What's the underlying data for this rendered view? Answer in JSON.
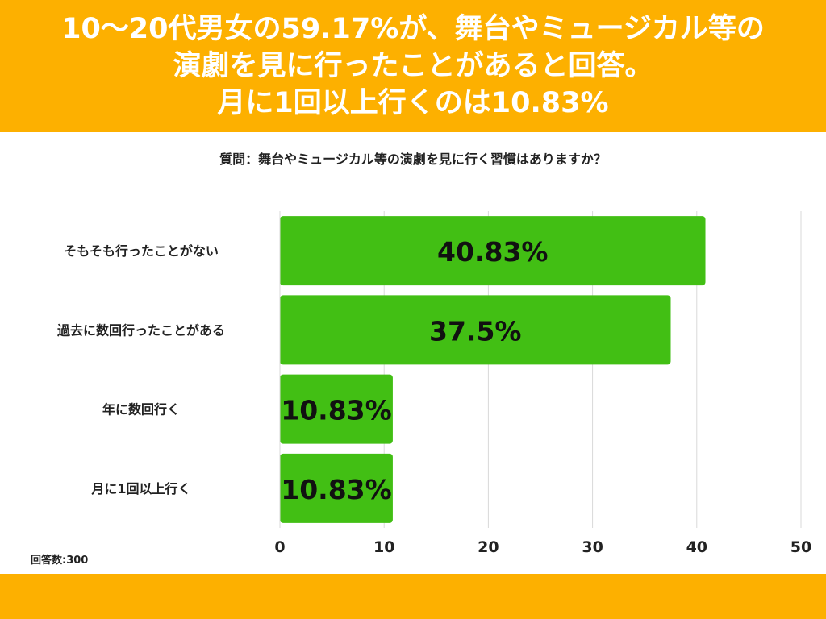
{
  "header": {
    "title_lines": [
      "10〜20代男女の59.17%が、舞台やミュージカル等の",
      "演劇を見に行ったことがあると回答。",
      "月に1回以上行くのは10.83%"
    ]
  },
  "question": "質問：舞台やミュージカル等の演劇を見に行く習慣はありますか？",
  "respondents": "回答数:300",
  "colors": {
    "brand": "#FDB000",
    "bar": "#42BF14",
    "grid": "#d9d9d9"
  },
  "chart_data": {
    "type": "bar",
    "orientation": "horizontal",
    "categories": [
      "そもそも行ったことがない",
      "過去に数回行ったことがある",
      "年に数回行く",
      "月に1回以上行く"
    ],
    "values": [
      40.83,
      37.5,
      10.83,
      10.83
    ],
    "data_labels": [
      "40.83%",
      "37.5%",
      "10.83%",
      "10.83%"
    ],
    "xlim": [
      0,
      50
    ],
    "xticks": [
      0,
      10,
      20,
      30,
      40,
      50
    ],
    "grid": true,
    "legend": "none"
  }
}
